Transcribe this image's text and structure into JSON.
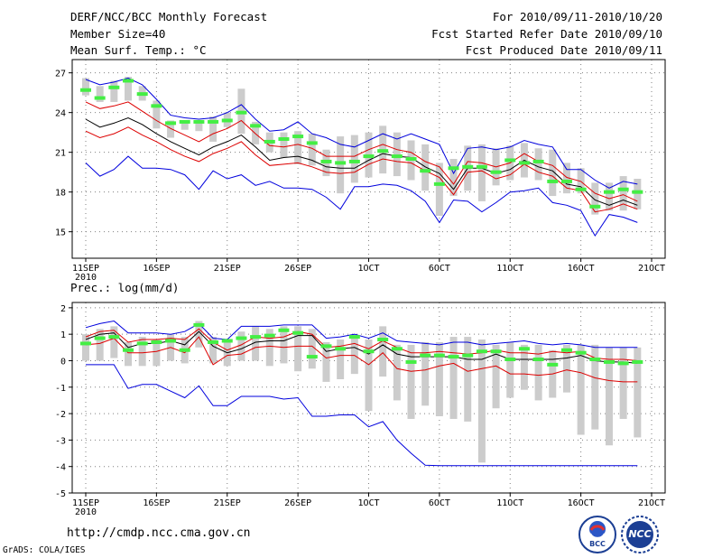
{
  "header": {
    "title": "DERF/NCC/BCC Monthly Forecast",
    "member_size": "Member Size=40",
    "variable": "Mean Surf. Temp.: °C",
    "period": "For 2010/09/11-2010/10/20",
    "started": "Fcst Started Refer Date 2010/09/10",
    "produced": "Fcst Produced Date 2010/09/11"
  },
  "footer": {
    "url": "http://cmdp.ncc.cma.gov.cn",
    "grads": "GrADS: COLA/IGES",
    "logo_bcc": "BCC",
    "logo_ncc": "NCC"
  },
  "colors": {
    "box": "#cccccc",
    "obs": "#44ee44",
    "mean": "#000000",
    "spread": "#dd0000",
    "extreme": "#0000dd",
    "grid": "#808080"
  },
  "chart_data": [
    {
      "type": "line",
      "title": "Mean Surf. Temp.: °C",
      "x_tick_labels": [
        "11SEP",
        "16SEP",
        "21SEP",
        "26SEP",
        "1OCT",
        "6OCT",
        "11OCT",
        "16OCT",
        "21OCT"
      ],
      "x_tick_days": [
        1,
        6,
        11,
        16,
        21,
        26,
        31,
        36,
        41
      ],
      "x_year_label": "2010",
      "xlim": [
        1,
        41
      ],
      "ylim": [
        13,
        28
      ],
      "y_ticks": [
        15,
        18,
        21,
        24,
        27
      ],
      "days": [
        1,
        2,
        3,
        4,
        5,
        6,
        7,
        8,
        9,
        10,
        11,
        12,
        13,
        14,
        15,
        16,
        17,
        18,
        19,
        20,
        21,
        22,
        23,
        24,
        25,
        26,
        27,
        28,
        29,
        30,
        31,
        32,
        33,
        34,
        35,
        36,
        37,
        38,
        39,
        40
      ],
      "series": [
        {
          "name": "max",
          "values": [
            26.5,
            26.1,
            26.3,
            26.6,
            26.1,
            25.0,
            23.8,
            23.6,
            23.5,
            23.6,
            24.0,
            24.6,
            23.5,
            22.6,
            22.7,
            23.3,
            22.4,
            22.1,
            21.6,
            21.4,
            21.9,
            22.4,
            22.0,
            22.4,
            22.0,
            21.6,
            19.4,
            21.3,
            21.4,
            21.2,
            21.4,
            21.9,
            21.6,
            21.4,
            19.7,
            19.7,
            18.9,
            18.3,
            18.8,
            18.6
          ]
        },
        {
          "name": "upper_spread",
          "values": [
            24.8,
            24.3,
            24.5,
            24.8,
            24.1,
            23.4,
            22.8,
            22.3,
            21.8,
            22.4,
            22.8,
            23.4,
            22.4,
            21.5,
            21.4,
            21.6,
            21.3,
            20.7,
            20.7,
            20.7,
            21.2,
            21.6,
            21.2,
            21.0,
            20.3,
            19.9,
            18.6,
            20.3,
            20.2,
            19.9,
            20.2,
            20.9,
            20.3,
            20.0,
            19.1,
            18.8,
            17.9,
            17.5,
            17.8,
            17.3
          ]
        },
        {
          "name": "mean",
          "values": [
            23.5,
            22.9,
            23.2,
            23.6,
            23.1,
            22.4,
            21.8,
            21.3,
            20.8,
            21.4,
            21.8,
            22.3,
            21.4,
            20.4,
            20.6,
            20.7,
            20.4,
            19.9,
            19.8,
            19.8,
            20.4,
            20.9,
            20.7,
            20.6,
            19.9,
            19.4,
            18.2,
            19.8,
            19.8,
            19.4,
            19.7,
            20.4,
            19.9,
            19.6,
            18.6,
            18.4,
            17.4,
            17.0,
            17.4,
            17.0
          ]
        },
        {
          "name": "lower_spread",
          "values": [
            22.6,
            22.1,
            22.4,
            22.9,
            22.3,
            21.8,
            21.2,
            20.7,
            20.3,
            20.9,
            21.3,
            21.8,
            20.8,
            20.0,
            20.1,
            20.2,
            19.9,
            19.5,
            19.4,
            19.5,
            20.1,
            20.5,
            20.3,
            20.2,
            19.6,
            19.1,
            17.8,
            19.5,
            19.6,
            19.0,
            19.3,
            20.1,
            19.5,
            19.2,
            18.3,
            18.1,
            16.5,
            16.7,
            17.1,
            16.7
          ]
        },
        {
          "name": "min",
          "values": [
            20.2,
            19.2,
            19.7,
            20.7,
            19.8,
            19.8,
            19.7,
            19.3,
            18.2,
            19.6,
            19.0,
            19.3,
            18.5,
            18.8,
            18.3,
            18.3,
            18.2,
            17.6,
            16.7,
            18.4,
            18.4,
            18.6,
            18.5,
            18.1,
            17.3,
            15.7,
            17.4,
            17.3,
            16.5,
            17.2,
            18.0,
            18.1,
            18.3,
            17.2,
            17.0,
            16.6,
            14.7,
            16.3,
            16.1,
            15.7
          ]
        },
        {
          "name": "box_top",
          "values": [
            26.6,
            26.0,
            26.4,
            26.7,
            26.0,
            24.9,
            23.4,
            23.3,
            23.3,
            23.7,
            24.0,
            25.8,
            23.3,
            22.5,
            22.5,
            22.6,
            22.4,
            21.2,
            22.2,
            22.3,
            22.5,
            23.0,
            22.5,
            21.9,
            21.6,
            20.2,
            20.5,
            21.5,
            21.6,
            21.3,
            21.5,
            21.7,
            21.3,
            21.2,
            20.2,
            19.8,
            18.7,
            18.7,
            19.2,
            19.0
          ]
        },
        {
          "name": "box_bottom",
          "values": [
            25.3,
            24.8,
            24.8,
            24.9,
            24.9,
            22.8,
            22.1,
            22.7,
            22.6,
            21.8,
            22.9,
            22.4,
            21.6,
            21.0,
            20.6,
            20.1,
            20.0,
            19.2,
            17.9,
            18.7,
            19.1,
            19.4,
            19.2,
            18.9,
            18.1,
            16.2,
            17.7,
            18.1,
            17.3,
            18.5,
            18.9,
            19.1,
            18.9,
            17.7,
            17.9,
            17.9,
            16.3,
            16.6,
            16.6,
            16.7
          ]
        },
        {
          "name": "observed",
          "values": [
            25.7,
            25.1,
            25.9,
            26.4,
            25.4,
            24.5,
            23.2,
            23.3,
            23.3,
            23.3,
            23.4,
            24.0,
            23.0,
            21.8,
            22.0,
            22.2,
            21.7,
            20.3,
            20.2,
            20.3,
            20.7,
            21.1,
            20.7,
            20.5,
            19.6,
            18.6,
            19.8,
            19.9,
            19.9,
            19.5,
            20.4,
            20.2,
            20.3,
            18.8,
            18.8,
            18.2,
            16.9,
            18.0,
            18.2,
            18.0
          ]
        }
      ]
    },
    {
      "type": "line",
      "title": "Prec.: log(mm/d)",
      "x_tick_labels": [
        "11SEP",
        "16SEP",
        "21SEP",
        "26SEP",
        "1OCT",
        "6OCT",
        "11OCT",
        "16OCT",
        "21OCT"
      ],
      "x_tick_days": [
        1,
        6,
        11,
        16,
        21,
        26,
        31,
        36,
        41
      ],
      "x_year_label": "2010",
      "xlim": [
        1,
        41
      ],
      "ylim": [
        -5,
        2.2
      ],
      "y_ticks": [
        -5,
        -4,
        -3,
        -2,
        -1,
        0,
        1,
        2
      ],
      "days": [
        1,
        2,
        3,
        4,
        5,
        6,
        7,
        8,
        9,
        10,
        11,
        12,
        13,
        14,
        15,
        16,
        17,
        18,
        19,
        20,
        21,
        22,
        23,
        24,
        25,
        26,
        27,
        28,
        29,
        30,
        31,
        32,
        33,
        34,
        35,
        36,
        37,
        38,
        39,
        40
      ],
      "series": [
        {
          "name": "max",
          "values": [
            1.25,
            1.4,
            1.5,
            1.05,
            1.05,
            1.05,
            1.0,
            1.1,
            1.4,
            0.85,
            0.8,
            1.3,
            1.3,
            1.3,
            1.35,
            1.35,
            1.35,
            0.85,
            0.9,
            1.0,
            0.85,
            1.05,
            0.75,
            0.7,
            0.65,
            0.6,
            0.7,
            0.7,
            0.6,
            0.65,
            0.7,
            0.75,
            0.65,
            0.6,
            0.65,
            0.6,
            0.5,
            0.5,
            0.5,
            0.5
          ]
        },
        {
          "name": "upper_spread",
          "values": [
            0.9,
            1.1,
            1.15,
            0.7,
            0.8,
            0.8,
            0.85,
            0.8,
            1.2,
            0.7,
            0.4,
            0.6,
            0.9,
            0.85,
            0.9,
            1.1,
            1.0,
            0.5,
            0.55,
            0.65,
            0.45,
            0.75,
            0.5,
            0.3,
            0.3,
            0.35,
            0.3,
            0.25,
            0.3,
            0.4,
            0.3,
            0.3,
            0.25,
            0.35,
            0.3,
            0.35,
            0.1,
            0.05,
            0.05,
            0.0
          ]
        },
        {
          "name": "mean",
          "values": [
            0.8,
            1.0,
            1.05,
            0.5,
            0.65,
            0.65,
            0.75,
            0.6,
            1.1,
            0.55,
            0.3,
            0.45,
            0.7,
            0.75,
            0.75,
            0.95,
            0.95,
            0.35,
            0.45,
            0.5,
            0.25,
            0.6,
            0.25,
            0.15,
            0.15,
            0.15,
            0.15,
            0.05,
            0.05,
            0.25,
            0.05,
            0.05,
            0.05,
            0.05,
            0.1,
            0.2,
            0.0,
            -0.05,
            -0.05,
            -0.1
          ]
        },
        {
          "name": "lower_spread",
          "values": [
            0.6,
            0.65,
            0.85,
            0.3,
            0.3,
            0.35,
            0.5,
            0.3,
            0.9,
            -0.15,
            0.2,
            0.25,
            0.5,
            0.55,
            0.5,
            0.55,
            0.55,
            0.1,
            0.2,
            0.2,
            -0.15,
            0.3,
            -0.3,
            -0.4,
            -0.35,
            -0.2,
            -0.1,
            -0.4,
            -0.3,
            -0.2,
            -0.5,
            -0.5,
            -0.55,
            -0.5,
            -0.35,
            -0.45,
            -0.65,
            -0.75,
            -0.8,
            -0.8
          ]
        },
        {
          "name": "min",
          "values": [
            -0.15,
            -0.15,
            -0.15,
            -1.05,
            -0.9,
            -0.9,
            -1.15,
            -1.4,
            -0.95,
            -1.7,
            -1.7,
            -1.35,
            -1.35,
            -1.35,
            -1.45,
            -1.4,
            -2.1,
            -2.1,
            -2.05,
            -2.05,
            -2.5,
            -2.3,
            -3.0,
            -3.5,
            -3.95,
            -3.97,
            -3.97,
            -3.97,
            -3.97,
            -3.97,
            -3.97,
            -3.97,
            -3.97,
            -3.97,
            -3.97,
            -3.97,
            -3.97,
            -3.97,
            -3.97,
            -3.97
          ]
        },
        {
          "name": "box_top",
          "values": [
            1.0,
            1.2,
            1.3,
            0.7,
            0.9,
            0.8,
            1.0,
            0.9,
            1.5,
            0.9,
            0.8,
            1.1,
            1.3,
            1.2,
            1.3,
            1.3,
            1.2,
            0.7,
            0.8,
            0.9,
            0.8,
            1.3,
            0.6,
            0.6,
            0.7,
            0.7,
            0.9,
            0.9,
            0.8,
            0.6,
            0.7,
            0.6,
            0.6,
            0.4,
            0.6,
            0.6,
            0.6,
            0.5,
            0.5,
            0.5
          ]
        },
        {
          "name": "box_bottom",
          "values": [
            0.0,
            0.0,
            0.1,
            -0.2,
            -0.2,
            -0.2,
            0.0,
            -0.1,
            0.5,
            -0.1,
            -0.2,
            0.0,
            0.0,
            -0.2,
            -0.1,
            -0.4,
            -0.3,
            -0.8,
            -0.7,
            -0.5,
            -1.9,
            -0.6,
            -1.5,
            -2.2,
            -1.7,
            -2.1,
            -2.2,
            -2.3,
            -3.85,
            -1.8,
            -1.4,
            -1.1,
            -1.5,
            -1.4,
            -1.2,
            -2.8,
            -2.6,
            -3.2,
            -2.2,
            -2.9
          ]
        },
        {
          "name": "observed",
          "values": [
            0.65,
            0.85,
            0.9,
            0.4,
            0.65,
            0.7,
            0.75,
            0.4,
            1.35,
            0.7,
            0.75,
            0.85,
            0.9,
            0.95,
            1.15,
            1.05,
            0.15,
            0.55,
            0.45,
            0.9,
            0.35,
            0.8,
            0.45,
            -0.05,
            0.2,
            0.2,
            0.15,
            0.2,
            0.35,
            0.35,
            0.05,
            0.45,
            0.05,
            -0.15,
            0.4,
            0.3,
            0.05,
            -0.05,
            -0.1,
            -0.05
          ]
        }
      ]
    }
  ]
}
